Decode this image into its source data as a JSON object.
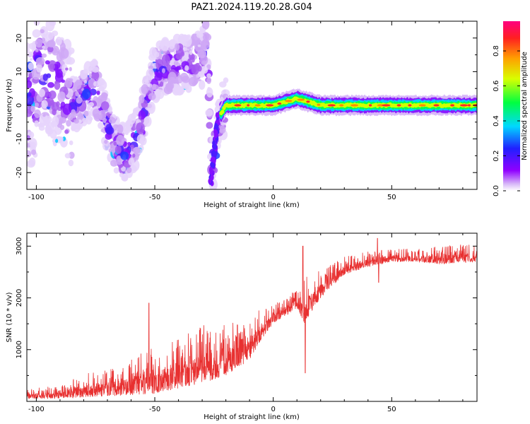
{
  "title": "PAZ1.2024.119.20.28.G04",
  "chart_data": [
    {
      "type": "heatmap",
      "xlabel": "Height of straight line (km)",
      "ylabel": "Frequency (Hz)",
      "xlim": [
        -104,
        86
      ],
      "ylim": [
        -25,
        25
      ],
      "x_ticks": [
        -100,
        -50,
        0,
        50
      ],
      "y_ticks": [
        -20,
        -10,
        0,
        10,
        20
      ],
      "colorbar": {
        "label": "Normalized spectral amplitude",
        "range": [
          0,
          0.97
        ],
        "ticks": [
          0.0,
          0.2,
          0.4,
          0.6,
          0.8
        ],
        "colormap": "rainbow (violet-blue-cyan-green-yellow-red-magenta)"
      },
      "ridge": [
        {
          "x": -100,
          "y": 12
        },
        {
          "x": -90,
          "y": 5
        },
        {
          "x": -85,
          "y": 0
        },
        {
          "x": -75,
          "y": 5
        },
        {
          "x": -68,
          "y": -10
        },
        {
          "x": -62,
          "y": -15
        },
        {
          "x": -57,
          "y": -8
        },
        {
          "x": -50,
          "y": 10
        },
        {
          "x": -40,
          "y": 12
        },
        {
          "x": -30,
          "y": 14
        },
        {
          "x": -28,
          "y": 22
        },
        {
          "x": -26,
          "y": -22
        },
        {
          "x": -24,
          "y": -5
        },
        {
          "x": -20,
          "y": 0
        },
        {
          "x": 0,
          "y": 0
        },
        {
          "x": 10,
          "y": 2
        },
        {
          "x": 20,
          "y": 0
        },
        {
          "x": 50,
          "y": 0
        },
        {
          "x": 86,
          "y": 0
        }
      ]
    },
    {
      "type": "line",
      "xlabel": "Height of straight line (km)",
      "ylabel": "SNR (10 * v/v)",
      "xlim": [
        -104,
        86
      ],
      "ylim": [
        0,
        3250
      ],
      "x_ticks": [
        -100,
        -50,
        0,
        50
      ],
      "y_ticks": [
        1000,
        2000,
        3000
      ],
      "color": "#e83030",
      "envelope": [
        {
          "x": -104,
          "low": 50,
          "high": 250
        },
        {
          "x": -90,
          "low": 60,
          "high": 300
        },
        {
          "x": -80,
          "low": 80,
          "high": 550
        },
        {
          "x": -70,
          "low": 100,
          "high": 600
        },
        {
          "x": -60,
          "low": 120,
          "high": 800
        },
        {
          "x": -50,
          "low": 150,
          "high": 1100
        },
        {
          "x": -40,
          "low": 250,
          "high": 1200
        },
        {
          "x": -30,
          "low": 350,
          "high": 1500
        },
        {
          "x": -20,
          "low": 500,
          "high": 1500
        },
        {
          "x": -10,
          "low": 800,
          "high": 1600
        },
        {
          "x": -5,
          "low": 1200,
          "high": 1800
        },
        {
          "x": 0,
          "low": 1500,
          "high": 1900
        },
        {
          "x": 5,
          "low": 1650,
          "high": 2000
        },
        {
          "x": 10,
          "low": 1800,
          "high": 2200
        },
        {
          "x": 13,
          "low": 1500,
          "high": 2400
        },
        {
          "x": 20,
          "low": 2000,
          "high": 2550
        },
        {
          "x": 30,
          "low": 2450,
          "high": 2800
        },
        {
          "x": 40,
          "low": 2600,
          "high": 2900
        },
        {
          "x": 50,
          "low": 2700,
          "high": 2950
        },
        {
          "x": 60,
          "low": 2700,
          "high": 2950
        },
        {
          "x": 70,
          "low": 2650,
          "high": 3000
        },
        {
          "x": 86,
          "low": 2700,
          "high": 3050
        }
      ],
      "spikes": [
        {
          "x": -52.5,
          "y": 1900
        },
        {
          "x": 12.5,
          "y": 3000
        },
        {
          "x": 13.5,
          "y": 550
        },
        {
          "x": 44,
          "y": 3150
        },
        {
          "x": 44.5,
          "y": 2300
        }
      ]
    }
  ]
}
